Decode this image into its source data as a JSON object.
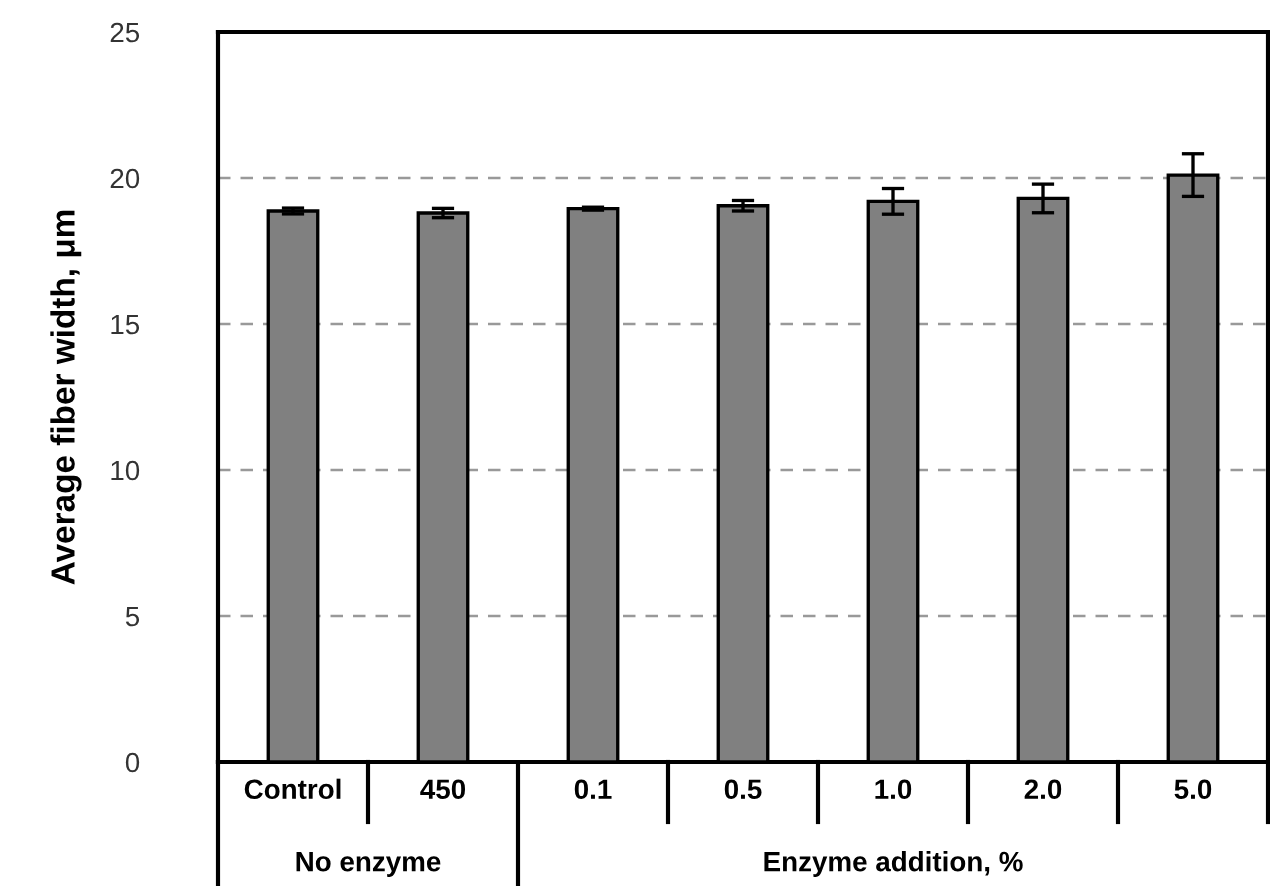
{
  "chart_data": {
    "type": "bar",
    "ylabel": "Average fiber width, μm",
    "categories": [
      "Control",
      "450",
      "0.1",
      "0.5",
      "1.0",
      "2.0",
      "5.0"
    ],
    "values": [
      18.87,
      18.8,
      18.95,
      19.05,
      19.2,
      19.3,
      20.1
    ],
    "errors": [
      0.1,
      0.16,
      0.05,
      0.18,
      0.44,
      0.49,
      0.73
    ],
    "color": "#808080",
    "ylim": [
      0,
      25
    ],
    "yticks": [
      0,
      5,
      10,
      15,
      20,
      25
    ],
    "grid": "y",
    "annotations": [
      "No enzyme",
      "Enzyme addition, %"
    ]
  }
}
